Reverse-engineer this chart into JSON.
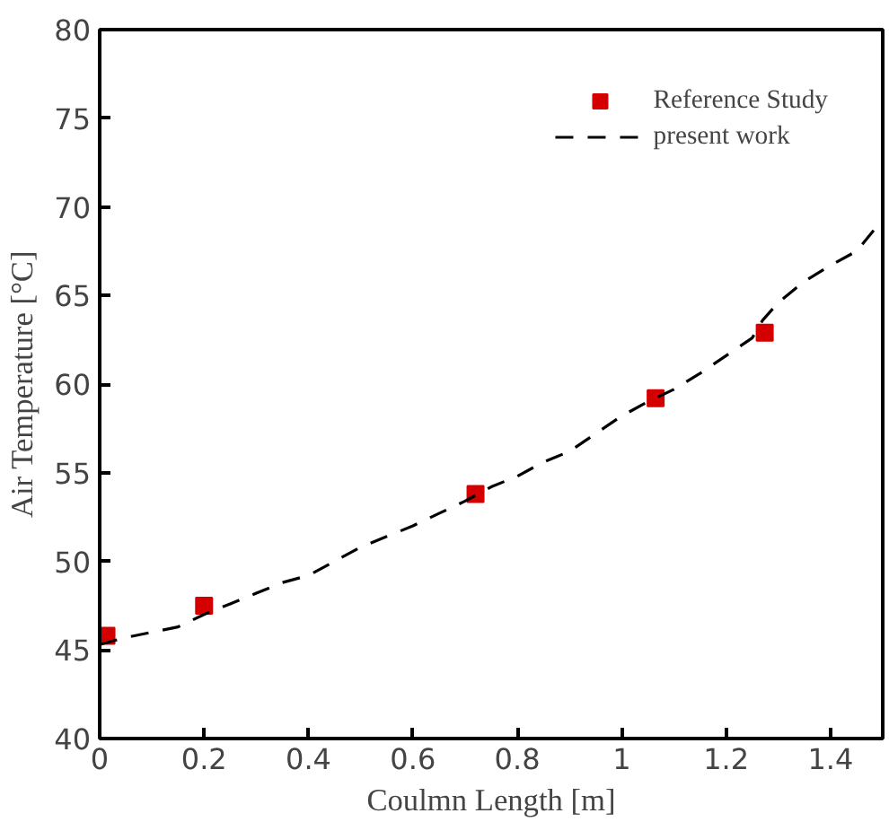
{
  "chart_data": {
    "type": "line",
    "xlabel": "Coulmn Length [m]",
    "ylabel": "Air Temperature [°C]",
    "xlim": [
      0,
      1.5
    ],
    "ylim": [
      40,
      80
    ],
    "xticks": [
      0,
      0.2,
      0.4,
      0.6,
      0.8,
      1,
      1.2,
      1.4
    ],
    "yticks": [
      40,
      45,
      50,
      55,
      60,
      65,
      70,
      75,
      80
    ],
    "grid": false,
    "legend": "top right",
    "series": [
      {
        "name": "Reference Study",
        "type": "scatter",
        "marker": "square",
        "color": "#d40000",
        "x": [
          0.013,
          0.2,
          0.72,
          1.065,
          1.274
        ],
        "values": [
          45.8,
          47.5,
          53.8,
          59.2,
          62.9
        ]
      },
      {
        "name": "present work",
        "line_style": "dashed",
        "color": "#000000",
        "x": [
          0,
          0.05,
          0.1,
          0.15,
          0.2,
          0.25,
          0.3,
          0.35,
          0.4,
          0.45,
          0.5,
          0.55,
          0.6,
          0.65,
          0.7,
          0.75,
          0.8,
          0.85,
          0.9,
          0.95,
          1.0,
          1.05,
          1.1,
          1.15,
          1.2,
          1.25,
          1.27,
          1.3,
          1.35,
          1.4,
          1.45,
          1.5
        ],
        "values": [
          45.3,
          45.7,
          46.0,
          46.3,
          47.0,
          47.6,
          48.2,
          48.8,
          49.2,
          50.0,
          50.8,
          51.4,
          52.0,
          52.7,
          53.4,
          54.2,
          54.8,
          55.6,
          56.2,
          57.2,
          58.2,
          59.0,
          59.7,
          60.6,
          61.6,
          62.6,
          63.6,
          64.6,
          65.8,
          66.7,
          67.5,
          69.3
        ]
      }
    ]
  }
}
